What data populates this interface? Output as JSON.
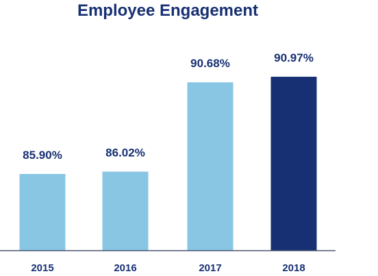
{
  "chart_data": {
    "type": "bar",
    "title": "Employee Engagement",
    "xlabel": "",
    "ylabel": "",
    "categories": [
      "2015",
      "2016",
      "2017",
      "2018"
    ],
    "values": [
      85.9,
      86.02,
      90.68,
      90.97
    ],
    "value_labels": [
      "85.90%",
      "86.02%",
      "90.68%",
      "90.97%"
    ],
    "unit": "%",
    "ylim": [
      81.9,
      91.9
    ],
    "grid": false,
    "legend": "none",
    "colors": {
      "bars": [
        "#89c6e3",
        "#89c6e3",
        "#89c6e3",
        "#173073"
      ],
      "text": "#173073",
      "axis": "#4a5670"
    }
  }
}
